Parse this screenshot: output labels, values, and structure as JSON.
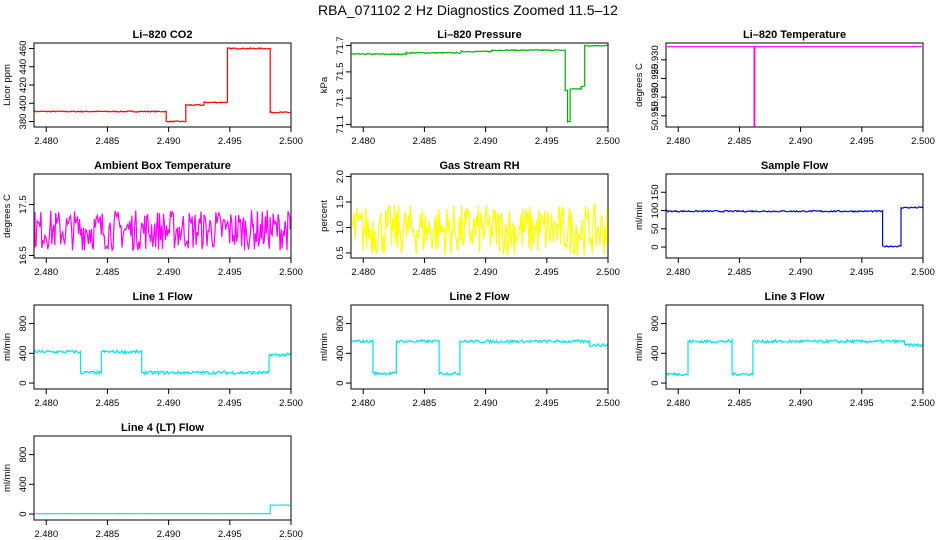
{
  "page": {
    "title": "RBA_071102  2 Hz Diagnostics Zoomed 11.5–12"
  },
  "chart_data": [
    {
      "type": "line",
      "title": "Li–820 CO2",
      "xlabel": "",
      "ylabel": "Licor ppm",
      "color": "#ff0000",
      "xlim": [
        2.479,
        2.5
      ],
      "ylim": [
        374,
        466
      ],
      "xticks": [
        "2.480",
        "2.485",
        "2.490",
        "2.495",
        "2.500"
      ],
      "xtick_values": [
        2.48,
        2.485,
        2.49,
        2.495,
        2.5
      ],
      "yticks": [
        "380",
        "400",
        "420",
        "440",
        "460"
      ],
      "ytick_values": [
        380,
        400,
        420,
        440,
        460
      ],
      "series": [
        {
          "name": "",
          "noise": 0.6,
          "steps": [
            [
              2.479,
              391
            ],
            [
              2.4898,
              380
            ],
            [
              2.4914,
              398
            ],
            [
              2.4929,
              401
            ],
            [
              2.4948,
              460
            ],
            [
              2.4983,
              390
            ],
            [
              2.5,
              390
            ]
          ]
        }
      ]
    },
    {
      "type": "line",
      "title": "Li–820 Pressure",
      "xlabel": "",
      "ylabel": "kPa",
      "color": "#00b000",
      "xlim": [
        2.479,
        2.5
      ],
      "ylim": [
        71.08,
        71.72
      ],
      "xticks": [
        "2.480",
        "2.485",
        "2.490",
        "2.495",
        "2.500"
      ],
      "xtick_values": [
        2.48,
        2.485,
        2.49,
        2.495,
        2.5
      ],
      "yticks": [
        "71.1",
        "71.3",
        "71.5",
        "71.7"
      ],
      "ytick_values": [
        71.1,
        71.3,
        71.5,
        71.7
      ],
      "series": [
        {
          "name": "",
          "noise": 0.004,
          "steps": [
            [
              2.479,
              71.635
            ],
            [
              2.4835,
              71.645
            ],
            [
              2.488,
              71.655
            ],
            [
              2.4905,
              71.665
            ],
            [
              2.4965,
              71.36
            ],
            [
              2.4967,
              71.12
            ],
            [
              2.4969,
              71.37
            ],
            [
              2.4978,
              71.39
            ],
            [
              2.4981,
              71.7
            ],
            [
              2.5,
              71.7
            ]
          ]
        }
      ]
    },
    {
      "type": "line",
      "title": "Li–820 Temperature",
      "xlabel": "",
      "ylabel": "degrees C",
      "color": "#ff00ff",
      "xlim": [
        2.479,
        2.5
      ],
      "ylim": [
        50.912,
        50.9345
      ],
      "xticks": [
        "2.480",
        "2.485",
        "2.490",
        "2.495",
        "2.500"
      ],
      "xtick_values": [
        2.48,
        2.485,
        2.49,
        2.495,
        2.5
      ],
      "yticks": [
        "50.915",
        "50.920",
        "50.925",
        "50.930"
      ],
      "ytick_values": [
        50.915,
        50.92,
        50.925,
        50.93
      ],
      "series": [
        {
          "name": "",
          "noise": 0,
          "steps": [
            [
              2.479,
              50.9335
            ],
            [
              2.4862,
              50.9335
            ],
            [
              2.4862,
              50.912
            ],
            [
              2.48625,
              50.9335
            ],
            [
              2.5,
              50.9335
            ]
          ]
        }
      ]
    },
    {
      "type": "line",
      "title": "Ambient Box Temperature",
      "xlabel": "",
      "ylabel": "degrees C",
      "color": "#ff00ff",
      "xlim": [
        2.479,
        2.5
      ],
      "ylim": [
        16.45,
        18.1
      ],
      "xticks": [
        "2.480",
        "2.485",
        "2.490",
        "2.495",
        "2.500"
      ],
      "xtick_values": [
        2.48,
        2.485,
        2.49,
        2.495,
        2.5
      ],
      "yticks": [
        "16.5",
        "17.5"
      ],
      "ytick_values": [
        16.5,
        17.5
      ],
      "series": [
        {
          "name": "",
          "noise": 0.4,
          "steps": [
            [
              2.479,
              17.0
            ],
            [
              2.5,
              17.0
            ]
          ]
        }
      ]
    },
    {
      "type": "line",
      "title": "Gas Stream RH",
      "xlabel": "",
      "ylabel": "percent",
      "color": "#ffff00",
      "xlim": [
        2.479,
        2.5
      ],
      "ylim": [
        0.4,
        2.05
      ],
      "xticks": [
        "2.480",
        "2.485",
        "2.490",
        "2.495",
        "2.500"
      ],
      "xtick_values": [
        2.48,
        2.485,
        2.49,
        2.495,
        2.5
      ],
      "yticks": [
        "0.5",
        "1.0",
        "1.5",
        "2.0"
      ],
      "ytick_values": [
        0.5,
        1.0,
        1.5,
        2.0
      ],
      "series": [
        {
          "name": "",
          "noise": 0.5,
          "steps": [
            [
              2.479,
              0.95
            ],
            [
              2.5,
              0.95
            ]
          ]
        }
      ]
    },
    {
      "type": "line",
      "title": "Sample Flow",
      "xlabel": "",
      "ylabel": "ml/min",
      "color": "#0000dd",
      "xlim": [
        2.479,
        2.5
      ],
      "ylim": [
        -30,
        200
      ],
      "xticks": [
        "2.480",
        "2.485",
        "2.490",
        "2.495",
        "2.500"
      ],
      "xtick_values": [
        2.48,
        2.485,
        2.49,
        2.495,
        2.5
      ],
      "yticks": [
        "0",
        "50",
        "100",
        "150"
      ],
      "ytick_values": [
        0,
        50,
        100,
        150
      ],
      "series": [
        {
          "name": "",
          "noise": 2,
          "steps": [
            [
              2.479,
              98
            ],
            [
              2.4967,
              98
            ],
            [
              2.4967,
              2
            ],
            [
              2.4982,
              2
            ],
            [
              2.4982,
              108
            ],
            [
              2.5,
              108
            ]
          ]
        }
      ]
    },
    {
      "type": "line",
      "title": "Line 1 Flow",
      "xlabel": "",
      "ylabel": "ml/min",
      "color": "#00e5ee",
      "xlim": [
        2.479,
        2.5
      ],
      "ylim": [
        -80,
        1050
      ],
      "xticks": [
        "2.480",
        "2.485",
        "2.490",
        "2.495",
        "2.500"
      ],
      "xtick_values": [
        2.48,
        2.485,
        2.49,
        2.495,
        2.5
      ],
      "yticks": [
        "0",
        "400",
        "800"
      ],
      "ytick_values": [
        0,
        400,
        800
      ],
      "series": [
        {
          "name": "",
          "noise": 22,
          "steps": [
            [
              2.479,
              420
            ],
            [
              2.4828,
              420
            ],
            [
              2.4828,
              140
            ],
            [
              2.4845,
              140
            ],
            [
              2.4845,
              420
            ],
            [
              2.4878,
              420
            ],
            [
              2.4878,
              140
            ],
            [
              2.4982,
              140
            ],
            [
              2.4982,
              380
            ],
            [
              2.5,
              380
            ]
          ]
        }
      ]
    },
    {
      "type": "line",
      "title": "Line 2 Flow",
      "xlabel": "",
      "ylabel": "ml/min",
      "color": "#00e5ee",
      "xlim": [
        2.479,
        2.5
      ],
      "ylim": [
        -80,
        1050
      ],
      "xticks": [
        "2.480",
        "2.485",
        "2.490",
        "2.495",
        "2.500"
      ],
      "xtick_values": [
        2.48,
        2.485,
        2.49,
        2.495,
        2.5
      ],
      "yticks": [
        "0",
        "400",
        "800"
      ],
      "ytick_values": [
        0,
        400,
        800
      ],
      "series": [
        {
          "name": "",
          "noise": 20,
          "steps": [
            [
              2.479,
              560
            ],
            [
              2.4808,
              560
            ],
            [
              2.4808,
              130
            ],
            [
              2.4827,
              130
            ],
            [
              2.4827,
              560
            ],
            [
              2.4862,
              560
            ],
            [
              2.4862,
              130
            ],
            [
              2.4879,
              130
            ],
            [
              2.4879,
              560
            ],
            [
              2.4985,
              560
            ],
            [
              2.4985,
              510
            ],
            [
              2.5,
              510
            ]
          ]
        }
      ]
    },
    {
      "type": "line",
      "title": "Line 3 Flow",
      "xlabel": "",
      "ylabel": "ml/min",
      "color": "#00e5ee",
      "xlim": [
        2.479,
        2.5
      ],
      "ylim": [
        -80,
        1050
      ],
      "xticks": [
        "2.480",
        "2.485",
        "2.490",
        "2.495",
        "2.500"
      ],
      "xtick_values": [
        2.48,
        2.485,
        2.49,
        2.495,
        2.5
      ],
      "yticks": [
        "0",
        "400",
        "800"
      ],
      "ytick_values": [
        0,
        400,
        800
      ],
      "series": [
        {
          "name": "",
          "noise": 20,
          "steps": [
            [
              2.479,
              120
            ],
            [
              2.4808,
              120
            ],
            [
              2.4808,
              560
            ],
            [
              2.4844,
              560
            ],
            [
              2.4844,
              120
            ],
            [
              2.4861,
              120
            ],
            [
              2.4861,
              560
            ],
            [
              2.4985,
              560
            ],
            [
              2.4985,
              510
            ],
            [
              2.5,
              510
            ]
          ]
        }
      ]
    },
    {
      "type": "line",
      "title": "Line 4 (LT) Flow",
      "xlabel": "",
      "ylabel": "ml/min",
      "color": "#00e5ee",
      "xlim": [
        2.479,
        2.5
      ],
      "ylim": [
        -80,
        1050
      ],
      "xticks": [
        "2.480",
        "2.485",
        "2.490",
        "2.495",
        "2.500"
      ],
      "xtick_values": [
        2.48,
        2.485,
        2.49,
        2.495,
        2.5
      ],
      "yticks": [
        "0",
        "400",
        "800"
      ],
      "ytick_values": [
        0,
        400,
        800
      ],
      "series": [
        {
          "name": "",
          "noise": 1,
          "steps": [
            [
              2.479,
              5
            ],
            [
              2.4983,
              5
            ],
            [
              2.4983,
              120
            ],
            [
              2.5,
              120
            ]
          ]
        }
      ]
    }
  ]
}
